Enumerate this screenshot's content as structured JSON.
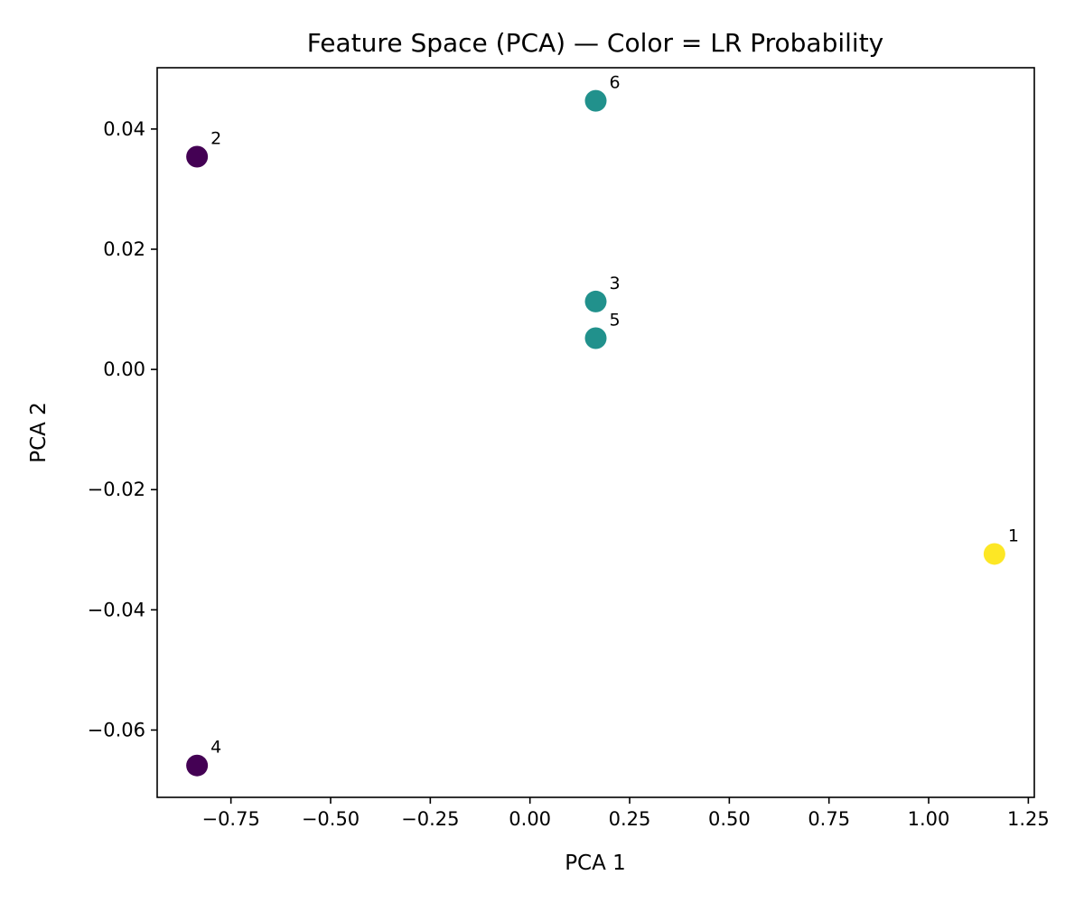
{
  "chart_data": {
    "type": "scatter",
    "title": "Feature Space (PCA) — Color = LR Probability",
    "xlabel": "PCA 1",
    "ylabel": "PCA 2",
    "xlim": [
      -0.935,
      1.265
    ],
    "ylim": [
      -0.0712,
      0.0502
    ],
    "xticks": [
      -0.75,
      -0.5,
      -0.25,
      0.0,
      0.25,
      0.5,
      0.75,
      1.0,
      1.25
    ],
    "xtick_labels": [
      "−0.75",
      "−0.50",
      "−0.25",
      "0.00",
      "0.25",
      "0.50",
      "0.75",
      "1.00",
      "1.25"
    ],
    "yticks": [
      -0.06,
      -0.04,
      -0.02,
      0.0,
      0.02,
      0.04
    ],
    "ytick_labels": [
      "−0.06",
      "−0.04",
      "−0.02",
      "0.00",
      "0.02",
      "0.04"
    ],
    "grid": false,
    "points": [
      {
        "label": "1",
        "x": 1.165,
        "y": -0.0307,
        "color": "#fde725"
      },
      {
        "label": "2",
        "x": -0.835,
        "y": 0.0354,
        "color": "#440154"
      },
      {
        "label": "3",
        "x": 0.165,
        "y": 0.0113,
        "color": "#21918c"
      },
      {
        "label": "4",
        "x": -0.835,
        "y": -0.0659,
        "color": "#440154"
      },
      {
        "label": "5",
        "x": 0.165,
        "y": 0.0052,
        "color": "#21918c"
      },
      {
        "label": "6",
        "x": 0.165,
        "y": 0.0447,
        "color": "#21918c"
      }
    ]
  }
}
